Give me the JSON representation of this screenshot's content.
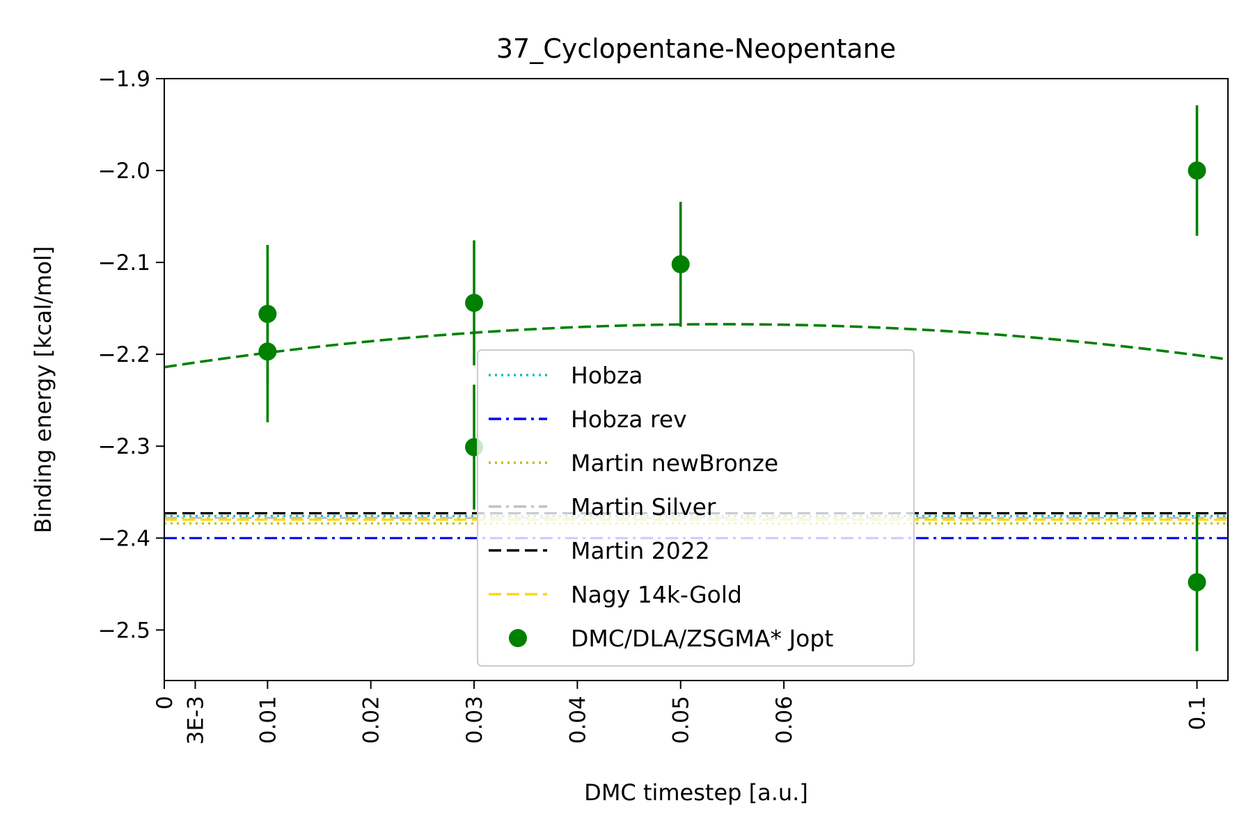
{
  "chart_data": {
    "type": "scatter",
    "title": "37_Cyclopentane-Neopentane",
    "xlabel": "DMC timestep [a.u.]",
    "ylabel": "Binding energy [kcal/mol]",
    "xlim": [
      0,
      0.103
    ],
    "ylim": [
      -2.555,
      -1.9
    ],
    "x_ticks": [
      {
        "value": 0,
        "label": "0"
      },
      {
        "value": 0.003,
        "label": "3E-3"
      },
      {
        "value": 0.01,
        "label": "0.01"
      },
      {
        "value": 0.02,
        "label": "0.02"
      },
      {
        "value": 0.03,
        "label": "0.03"
      },
      {
        "value": 0.04,
        "label": "0.04"
      },
      {
        "value": 0.05,
        "label": "0.05"
      },
      {
        "value": 0.06,
        "label": "0.06"
      },
      {
        "value": 0.1,
        "label": "0.1"
      }
    ],
    "y_ticks": [
      {
        "value": -1.9,
        "label": "−1.9"
      },
      {
        "value": -2.0,
        "label": "−2.0"
      },
      {
        "value": -2.1,
        "label": "−2.1"
      },
      {
        "value": -2.2,
        "label": "−2.2"
      },
      {
        "value": -2.3,
        "label": "−2.3"
      },
      {
        "value": -2.4,
        "label": "−2.4"
      },
      {
        "value": -2.5,
        "label": "−2.5"
      }
    ],
    "grid": false,
    "legend_position": "center",
    "reference_lines": [
      {
        "name": "Hobza",
        "y": -2.376,
        "color": "#00bfbf",
        "style": "dotted"
      },
      {
        "name": "Hobza rev",
        "y": -2.4,
        "color": "#0000ff",
        "style": "dashdot"
      },
      {
        "name": "Martin newBronze",
        "y": -2.384,
        "color": "#bfbf00",
        "style": "dotted"
      },
      {
        "name": "Martin Silver",
        "y": -2.378,
        "color": "#c0c0c0",
        "style": "dashdot"
      },
      {
        "name": "Martin 2022",
        "y": -2.373,
        "color": "#000000",
        "style": "dashed"
      },
      {
        "name": "Nagy 14k-Gold",
        "y": -2.38,
        "color": "#ffd700",
        "style": "dashed"
      }
    ],
    "series": [
      {
        "name": "DMC/DLA/ZSGMA* Jopt",
        "color": "#008000",
        "points": [
          {
            "x": 0.01,
            "y": -2.156,
            "err": 0.075
          },
          {
            "x": 0.01,
            "y": -2.197,
            "err": 0.077
          },
          {
            "x": 0.03,
            "y": -2.144,
            "err": 0.068
          },
          {
            "x": 0.03,
            "y": -2.301,
            "err": 0.068
          },
          {
            "x": 0.05,
            "y": -2.102,
            "err": 0.068
          },
          {
            "x": 0.1,
            "y": -2.0,
            "err": 0.071
          },
          {
            "x": 0.1,
            "y": -2.448,
            "err": 0.075
          }
        ]
      }
    ],
    "fit": {
      "color": "#008000",
      "style": "dashed",
      "coefficients": [
        -2.214,
        1.73,
        -16.0
      ]
    },
    "legend": [
      {
        "label": "Hobza",
        "color": "#00bfbf",
        "style": "dotted"
      },
      {
        "label": "Hobza rev",
        "color": "#0000ff",
        "style": "dashdot"
      },
      {
        "label": "Martin newBronze",
        "color": "#bfbf00",
        "style": "dotted"
      },
      {
        "label": "Martin Silver",
        "color": "#c0c0c0",
        "style": "dashdot"
      },
      {
        "label": "Martin 2022",
        "color": "#000000",
        "style": "dashed"
      },
      {
        "label": "Nagy 14k-Gold",
        "color": "#ffd700",
        "style": "dashed"
      },
      {
        "label": "DMC/DLA/ZSGMA* Jopt",
        "color": "#008000",
        "style": "marker"
      }
    ]
  }
}
